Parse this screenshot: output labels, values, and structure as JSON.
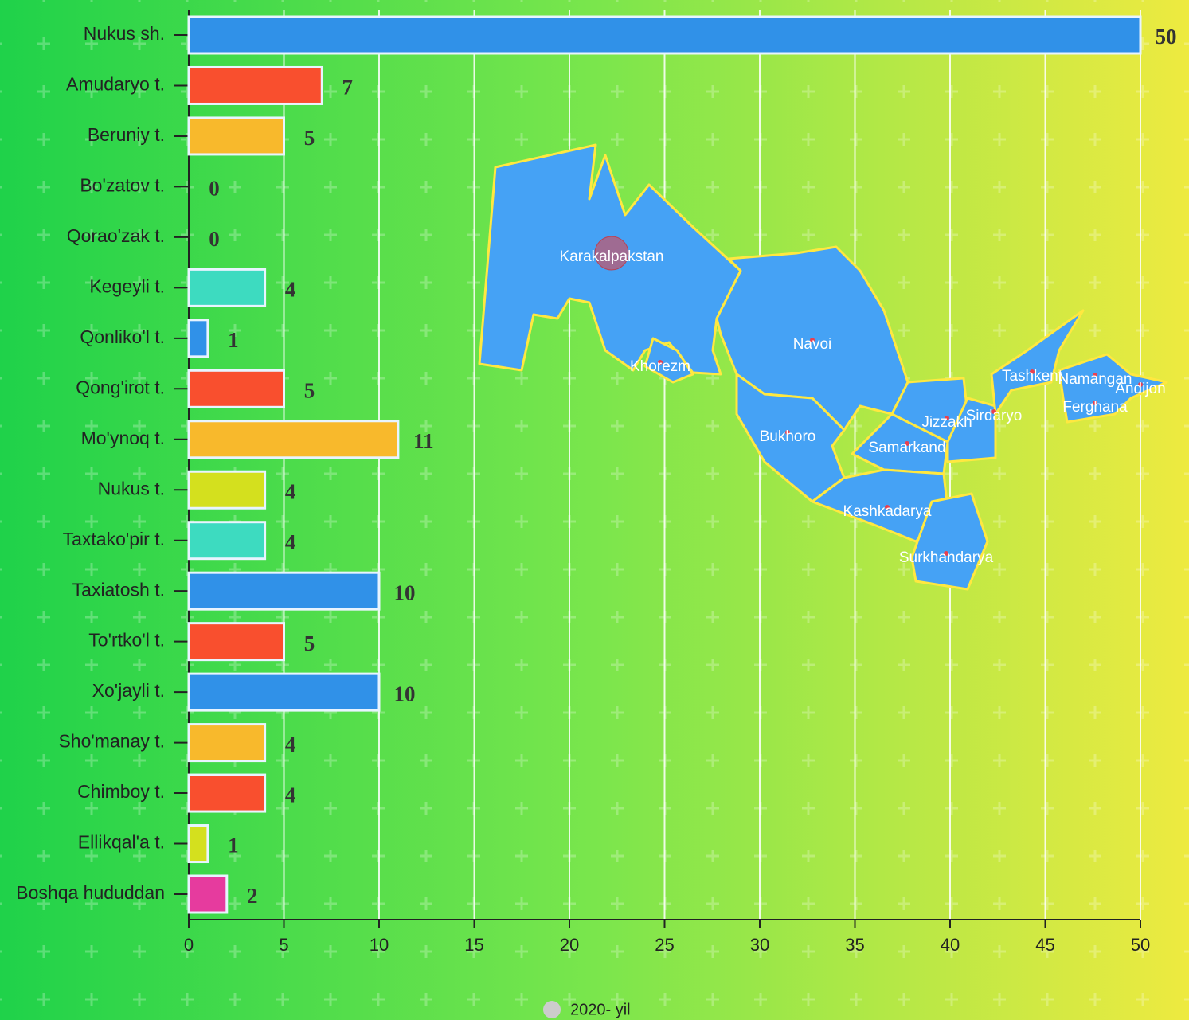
{
  "chart_data": {
    "type": "hbar",
    "categories": [
      "Nukus sh.",
      "Amudaryo t.",
      "Beruniy t.",
      "Bo'zatov t.",
      "Qorao'zak t.",
      "Kegeyli t.",
      "Qonliko'l t.",
      "Qong'irot t.",
      "Mo'ynoq t.",
      "Nukus t.",
      "Taxtako'pir t.",
      "Taxiatosh t.",
      "To'rtko'l t.",
      "Xo'jayli t.",
      "Sho'manay t.",
      "Chimboy t.",
      "Ellikqal'a t.",
      "Boshqa hududdan"
    ],
    "series": [
      {
        "name": "2020- yil",
        "color": "#cccccc",
        "values": [
          50,
          7,
          5,
          0,
          0,
          4,
          1,
          5,
          11,
          4,
          4,
          10,
          5,
          10,
          4,
          4,
          1,
          2
        ]
      }
    ],
    "colors": [
      "#3091e8",
      "#f94f2e",
      "#f8b92c",
      "#3091e8",
      "#f94f2e",
      "#3ddbc0",
      "#3091e8",
      "#f94f2e",
      "#f8b92c",
      "#d4e01e",
      "#3ddbc0",
      "#3091e8",
      "#f94f2e",
      "#3091e8",
      "#f8b92c",
      "#f94f2e",
      "#d4e01e",
      "#e63b9e"
    ],
    "xlim": [
      0,
      50
    ],
    "xticks": [
      0,
      5,
      10,
      15,
      20,
      25,
      30,
      35,
      40,
      45,
      50
    ],
    "grid": true,
    "legend": "bottom"
  },
  "map": {
    "regions": [
      "Karakalpakstan",
      "Khorezm",
      "Navoi",
      "Bukhoro",
      "Samarkand",
      "Jizzakh",
      "Sirdaryo",
      "Tashkent",
      "Namangan",
      "Andijon",
      "Ferghana",
      "Kashkadarya",
      "Surkhandarya"
    ]
  }
}
